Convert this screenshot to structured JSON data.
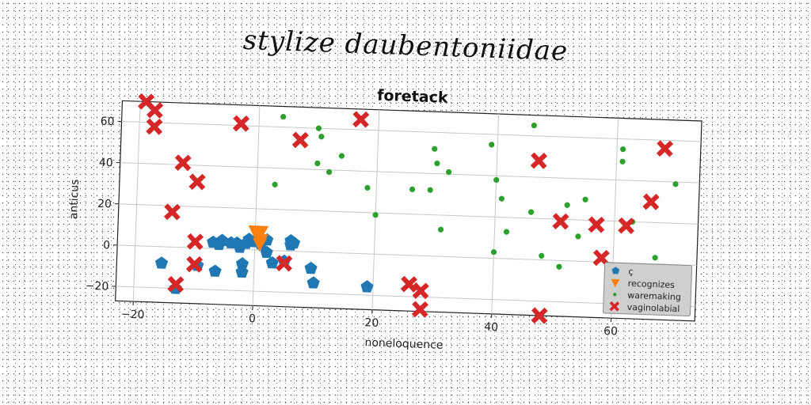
{
  "suptitle": "stylize daubentoniidae",
  "chart_data": {
    "type": "scatter",
    "title": "foretack",
    "xlabel": "noneloquence",
    "ylabel": "anticus",
    "xlim": [
      -23,
      74
    ],
    "ylim": [
      -27,
      70
    ],
    "xticks": [
      -20,
      0,
      20,
      40,
      60
    ],
    "yticks": [
      -20,
      0,
      20,
      40,
      60
    ],
    "grid": true,
    "legend_position": "lower-right",
    "series": [
      {
        "name": "ç",
        "marker": "pentagon",
        "color": "#1f77b4",
        "points": [
          [
            -15.5,
            -8
          ],
          [
            -13,
            -20
          ],
          [
            -9.5,
            -8.5
          ],
          [
            -6.5,
            -11
          ],
          [
            -7,
            3
          ],
          [
            -6,
            2
          ],
          [
            -5.5,
            4
          ],
          [
            -4,
            3
          ],
          [
            -3,
            3
          ],
          [
            -2.5,
            1
          ],
          [
            -2,
            -7
          ],
          [
            -2,
            -11
          ],
          [
            -1.5,
            3
          ],
          [
            -1,
            5
          ],
          [
            0,
            4
          ],
          [
            1,
            3
          ],
          [
            2,
            5
          ],
          [
            2,
            -1
          ],
          [
            3,
            -6
          ],
          [
            5,
            -5
          ],
          [
            6,
            5
          ],
          [
            6.5,
            4
          ],
          [
            6,
            3
          ],
          [
            9.5,
            -8
          ],
          [
            10,
            -15
          ],
          [
            19,
            -16
          ]
        ]
      },
      {
        "name": "recognizes",
        "marker": "triangle-down",
        "color": "#ff7f0e",
        "points": [
          [
            0,
            9
          ],
          [
            0.5,
            7
          ],
          [
            1,
            5
          ],
          [
            1,
            9
          ],
          [
            0.8,
            3
          ]
        ]
      },
      {
        "name": "waremaking",
        "marker": "circle",
        "color": "#2ca02c",
        "points": [
          [
            4,
            65
          ],
          [
            10,
            60
          ],
          [
            10.5,
            56
          ],
          [
            10,
            43
          ],
          [
            12,
            39
          ],
          [
            14,
            47
          ],
          [
            3,
            32
          ],
          [
            18.5,
            32
          ],
          [
            20,
            19
          ],
          [
            26,
            32
          ],
          [
            29,
            32
          ],
          [
            29.5,
            52
          ],
          [
            30,
            45
          ],
          [
            31,
            13
          ],
          [
            32,
            41
          ],
          [
            39,
            55
          ],
          [
            40,
            38
          ],
          [
            40,
            3
          ],
          [
            41,
            29
          ],
          [
            42,
            13
          ],
          [
            46,
            65
          ],
          [
            46,
            23
          ],
          [
            48,
            2
          ],
          [
            51,
            -3
          ],
          [
            52,
            27
          ],
          [
            54,
            12
          ],
          [
            55,
            30
          ],
          [
            61,
            49
          ],
          [
            61,
            55
          ],
          [
            63,
            20
          ],
          [
            66,
            -19
          ],
          [
            67,
            3
          ],
          [
            70,
            39
          ]
        ]
      },
      {
        "name": "vaginolabial",
        "marker": "x",
        "color": "#d62728",
        "points": [
          [
            -19,
            70
          ],
          [
            -17.5,
            66
          ],
          [
            -17.5,
            58
          ],
          [
            -12.5,
            41
          ],
          [
            -10,
            32
          ],
          [
            -14,
            17
          ],
          [
            -10,
            3
          ],
          [
            -10,
            -8
          ],
          [
            -13,
            -18
          ],
          [
            -3,
            61
          ],
          [
            7,
            54
          ],
          [
            17,
            65
          ],
          [
            5,
            -6
          ],
          [
            26,
            -14
          ],
          [
            28,
            -17
          ],
          [
            28,
            -26
          ],
          [
            47,
            48
          ],
          [
            51,
            19
          ],
          [
            48,
            -27
          ],
          [
            57,
            18
          ],
          [
            58,
            2
          ],
          [
            62,
            18
          ],
          [
            66,
            30
          ],
          [
            68,
            56
          ]
        ]
      }
    ]
  }
}
